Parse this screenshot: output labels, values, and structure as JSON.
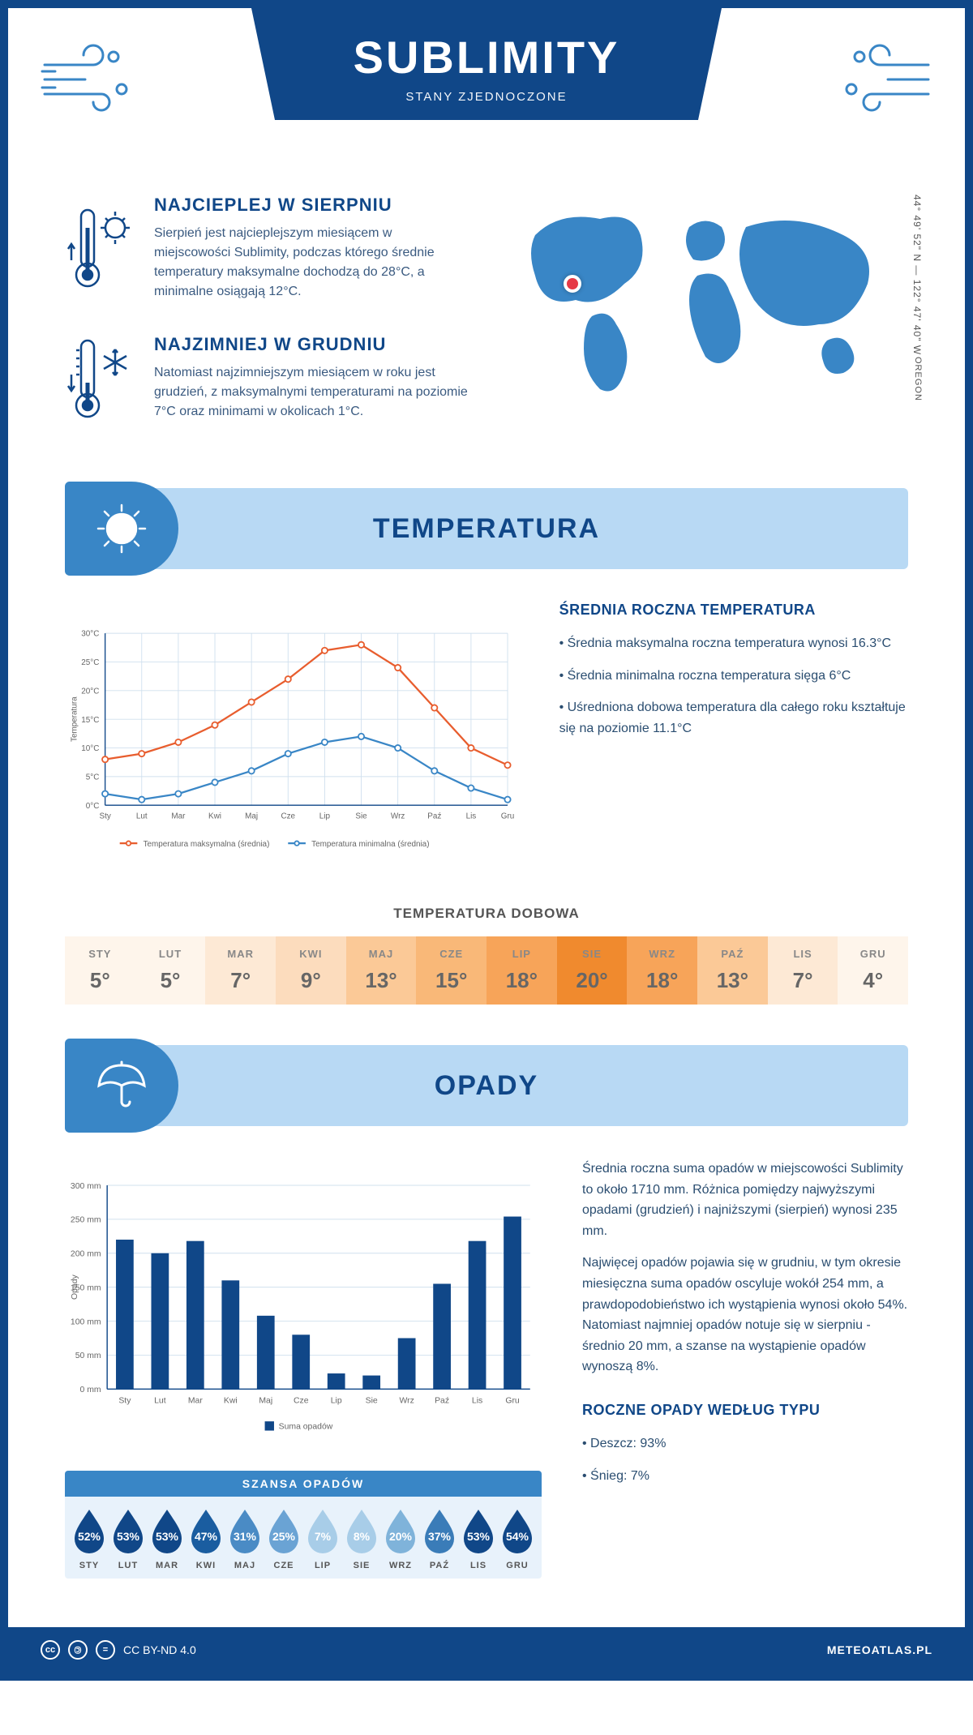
{
  "header": {
    "title": "SUBLIMITY",
    "subtitle": "STANY ZJEDNOCZONE"
  },
  "intro": {
    "hot": {
      "title": "NAJCIEPLEJ W SIERPNIU",
      "text": "Sierpień jest najcieplejszym miesiącem w miejscowości Sublimity, podczas którego średnie temperatury maksymalne dochodzą do 28°C, a minimalne osiągają 12°C."
    },
    "cold": {
      "title": "NAJZIMNIEJ W GRUDNIU",
      "text": "Natomiast najzimniejszym miesiącem w roku jest grudzień, z maksymalnymi temperaturami na poziomie 7°C oraz minimami w okolicach 1°C."
    },
    "coords": "44° 49' 52\" N — 122° 47' 40\" W",
    "region": "OREGON",
    "marker": {
      "left_pct": 15,
      "top_pct": 38
    }
  },
  "temperature": {
    "section_title": "TEMPERATURA",
    "chart": {
      "type": "line",
      "months": [
        "Sty",
        "Lut",
        "Mar",
        "Kwi",
        "Maj",
        "Cze",
        "Lip",
        "Sie",
        "Wrz",
        "Paź",
        "Lis",
        "Gru"
      ],
      "series": [
        {
          "name": "Temperatura maksymalna (średnia)",
          "color": "#e85d2e",
          "values": [
            8,
            9,
            11,
            14,
            18,
            22,
            27,
            28,
            24,
            17,
            10,
            7
          ]
        },
        {
          "name": "Temperatura minimalna (średnia)",
          "color": "#3986c6",
          "values": [
            2,
            1,
            2,
            4,
            6,
            9,
            11,
            12,
            10,
            6,
            3,
            1
          ]
        }
      ],
      "ylabel": "Temperatura",
      "ylim": [
        0,
        30
      ],
      "ytick_step": 5,
      "ytick_suffix": "°C",
      "grid_color": "#d0e0ee",
      "axis_color": "#104788",
      "line_width": 2.5,
      "marker_radius": 4,
      "background_color": "#ffffff",
      "label_fontsize": 11
    },
    "side": {
      "title": "ŚREDNIA ROCZNA TEMPERATURA",
      "bullets": [
        "• Średnia maksymalna roczna temperatura wynosi 16.3°C",
        "• Średnia minimalna roczna temperatura sięga 6°C",
        "• Uśredniona dobowa temperatura dla całego roku kształtuje się na poziomie 11.1°C"
      ]
    },
    "dobowa": {
      "title": "TEMPERATURA DOBOWA",
      "months": [
        "STY",
        "LUT",
        "MAR",
        "KWI",
        "MAJ",
        "CZE",
        "LIP",
        "SIE",
        "WRZ",
        "PAŹ",
        "LIS",
        "GRU"
      ],
      "values": [
        "5°",
        "5°",
        "7°",
        "9°",
        "13°",
        "15°",
        "18°",
        "20°",
        "18°",
        "13°",
        "7°",
        "4°"
      ],
      "colors": [
        "#fef5eb",
        "#fef5eb",
        "#fde9d5",
        "#fcdcbd",
        "#fbc997",
        "#f9b878",
        "#f7a459",
        "#f08a2e",
        "#f7a459",
        "#fbc997",
        "#fde9d5",
        "#fef5eb"
      ]
    }
  },
  "opady": {
    "section_title": "OPADY",
    "chart": {
      "type": "bar",
      "months": [
        "Sty",
        "Lut",
        "Mar",
        "Kwi",
        "Maj",
        "Cze",
        "Lip",
        "Sie",
        "Wrz",
        "Paź",
        "Lis",
        "Gru"
      ],
      "values": [
        220,
        200,
        218,
        160,
        108,
        80,
        23,
        20,
        75,
        155,
        218,
        254
      ],
      "bar_color": "#104788",
      "ylabel": "Opady",
      "ylim": [
        0,
        300
      ],
      "ytick_step": 50,
      "ytick_suffix": " mm",
      "grid_color": "#d0e0ee",
      "axis_color": "#104788",
      "bar_width": 0.5,
      "legend": "Suma opadów",
      "label_fontsize": 11
    },
    "side": {
      "p1": "Średnia roczna suma opadów w miejscowości Sublimity to około 1710 mm. Różnica pomiędzy najwyższymi opadami (grudzień) i najniższymi (sierpień) wynosi 235 mm.",
      "p2": "Najwięcej opadów pojawia się w grudniu, w tym okresie miesięczna suma opadów oscyluje wokół 254 mm, a prawdopodobieństwo ich wystąpienia wynosi około 54%. Natomiast najmniej opadów notuje się w sierpniu - średnio 20 mm, a szanse na wystąpienie opadów wynoszą 8%.",
      "type_title": "ROCZNE OPADY WEDŁUG TYPU",
      "types": [
        "• Deszcz: 93%",
        "• Śnieg: 7%"
      ]
    },
    "szansa": {
      "title": "SZANSA OPADÓW",
      "months": [
        "STY",
        "LUT",
        "MAR",
        "KWI",
        "MAJ",
        "CZE",
        "LIP",
        "SIE",
        "WRZ",
        "PAŹ",
        "LIS",
        "GRU"
      ],
      "pct": [
        52,
        53,
        53,
        47,
        31,
        25,
        7,
        8,
        20,
        37,
        53,
        54
      ],
      "colors": [
        "#104788",
        "#104788",
        "#104788",
        "#1a5da0",
        "#4a8bc5",
        "#6aa3d4",
        "#a8cde8",
        "#a8cde8",
        "#7fb3da",
        "#3a7cb8",
        "#104788",
        "#104788"
      ]
    }
  },
  "footer": {
    "license": "CC BY-ND 4.0",
    "site": "METEOATLAS.PL"
  }
}
